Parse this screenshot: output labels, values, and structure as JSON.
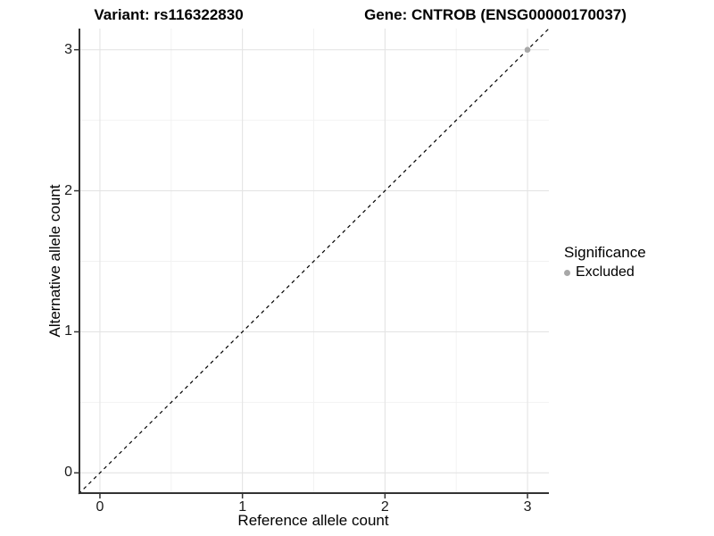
{
  "header": {
    "variant_title": "Variant: rs116322830",
    "gene_title": "Gene: CNTROB (ENSG00000170037)"
  },
  "chart_data": {
    "type": "scatter",
    "xlabel": "Reference allele count",
    "ylabel": "Alternative allele count",
    "xlim": [
      -0.15,
      3.15
    ],
    "ylim": [
      -0.15,
      3.15
    ],
    "x_major_ticks": [
      0,
      1,
      2,
      3
    ],
    "y_major_ticks": [
      0,
      1,
      2,
      3
    ],
    "x_minor_ticks": [
      0.5,
      1.5,
      2.5
    ],
    "y_minor_ticks": [
      0.5,
      1.5,
      2.5
    ],
    "grid": true,
    "identity_line": {
      "style": "dashed",
      "color": "#000000",
      "from": [
        -0.15,
        -0.15
      ],
      "to": [
        3.15,
        3.15
      ]
    },
    "points": [
      {
        "x": 3,
        "y": 3,
        "significance": "Excluded",
        "color": "#A8A8A8"
      }
    ]
  },
  "legend": {
    "title": "Significance",
    "position": "right",
    "items": [
      {
        "label": "Excluded",
        "color": "#A8A8A8"
      }
    ]
  },
  "colors": {
    "background": "#FFFFFF",
    "grid_major": "#E4E4E4",
    "grid_minor": "#F2F2F2",
    "axis_line": "#333333",
    "tick_mark": "#333333",
    "tick_label": "#1A1A1A",
    "identity_line": "#000000",
    "point": "#A8A8A8"
  }
}
